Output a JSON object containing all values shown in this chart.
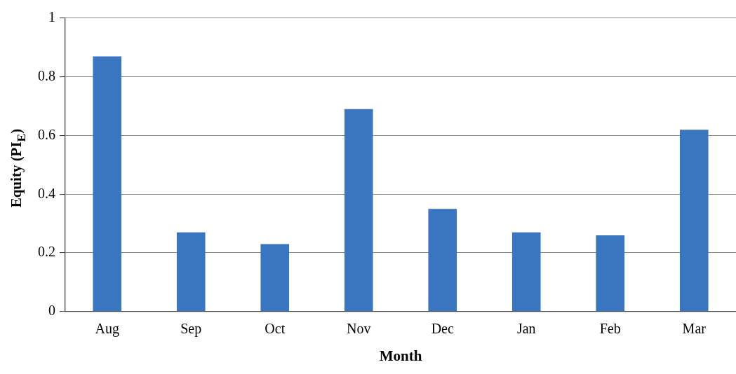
{
  "chart_data": {
    "type": "bar",
    "xlabel": "Month",
    "ylabel": "Equity (PI$_{E}$)",
    "categories": [
      "Aug",
      "Sep",
      "Oct",
      "Nov",
      "Dec",
      "Jan",
      "Feb",
      "Mar"
    ],
    "values": [
      0.87,
      0.27,
      0.23,
      0.69,
      0.35,
      0.27,
      0.26,
      0.62
    ],
    "color": "#3a76c0",
    "ylim": [
      0,
      1
    ],
    "yticks": [
      0,
      0.2,
      0.4,
      0.6,
      0.8,
      1
    ],
    "grid": "y"
  }
}
